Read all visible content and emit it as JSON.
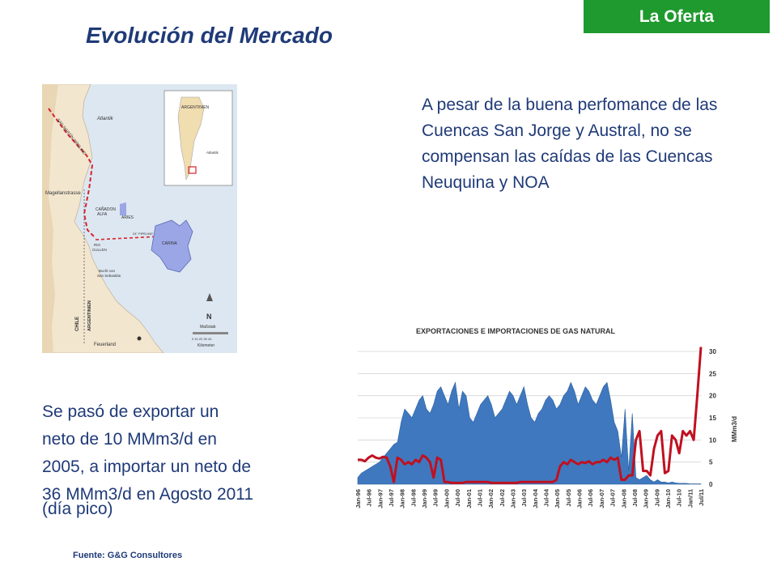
{
  "badge": {
    "label": "La Oferta",
    "color": "#1f9a2e"
  },
  "title": "Evolución del Mercado",
  "text_color": "#1f3a78",
  "paragraph_top": "A pesar de la buena perfomance de las Cuencas San Jorge y  Austral, no se compensan las caídas de las Cuencas Neuquina y NOA",
  "paragraph_bottom": {
    "lines": [
      "Se pasó de exportar un",
      "neto de 10 MMm3/d en",
      "2005, a importar un neto de",
      "36 MMm3/d en Agosto 2011"
    ],
    "last": "(día pico)"
  },
  "source": "Fuente: G&G  Consultores",
  "map": {
    "labels": {
      "sea": "Atlantik",
      "inset_country": "ARGENTINIEN",
      "inset_ocean": "Atlantik",
      "strait": "Magellanstrasse",
      "field1": "CAÑADON",
      "field2": "ALFA",
      "field3": "ARIES",
      "field4": "CARINA",
      "rio1": "RIO",
      "rio2": "CULLEN",
      "bay1": "Bucht von",
      "bay2": "San Sebastián",
      "country1": "CHILE",
      "country2": "ARGENTINIEN",
      "town": "Feuerland",
      "north": "N",
      "scale_title": "Maßstab",
      "scale_unit": "Kilometer",
      "scale_ticks": "0  10  20  30  40",
      "pipeline": "SAN MARTÍN PIPELINE",
      "line_label": "24\" PIPELINE"
    }
  },
  "chart_data": {
    "type": "area",
    "title": "EXPORTACIONES E IMPORTACIONES DE GAS NATURAL",
    "ylabel": "MMm3/d",
    "ylim": [
      0,
      30
    ],
    "yticks": [
      0,
      5,
      10,
      15,
      20,
      25,
      30
    ],
    "y_axis_side": "right",
    "grid": true,
    "x_ticks": [
      "Jan-96",
      "Jul-96",
      "Jan-97",
      "Jul-97",
      "Jan-98",
      "Jul-98",
      "Jan-99",
      "Jul-99",
      "Jan-00",
      "Jul-00",
      "Jan-01",
      "Jul-01",
      "Jan-02",
      "Jul-02",
      "Jan-03",
      "Jul-03",
      "Jan-04",
      "Jul-04",
      "Jan-05",
      "Jul-05",
      "Jan-06",
      "Jul-06",
      "Jan-07",
      "Jul-07",
      "Jan-08",
      "Jul-08",
      "Jan-09",
      "Jul-09",
      "Jan-10",
      "Jul-10",
      "Jan/11",
      "Jul/11"
    ],
    "series": [
      {
        "kind": "area",
        "color": "#3f78be",
        "values": [
          1.5,
          2.5,
          3,
          3.5,
          4,
          4.5,
          5,
          6,
          7,
          8,
          9,
          9.5,
          14,
          17,
          16,
          15,
          17,
          19,
          20,
          17,
          16,
          18,
          21,
          22,
          20,
          18,
          21,
          23,
          17,
          21,
          20,
          15,
          14,
          16,
          18,
          19,
          20,
          18,
          15,
          16,
          17,
          19,
          21,
          20,
          18,
          20,
          22,
          18,
          15,
          14,
          16,
          17,
          19,
          20,
          19,
          17,
          18,
          20,
          21,
          23,
          21,
          18,
          20,
          22,
          21,
          19,
          18,
          20,
          22,
          23,
          19,
          14,
          12,
          6,
          17,
          3,
          16,
          1.5,
          1,
          1.5,
          2,
          1,
          0.5,
          1,
          0.5,
          0.5,
          0.3,
          0.5,
          0.3,
          0.2,
          0.2,
          0.2,
          0.1,
          0.1,
          0.1,
          0.1
        ]
      },
      {
        "kind": "line",
        "color": "#c01020",
        "values": [
          5.5,
          5.5,
          5.2,
          6,
          6.5,
          6,
          5.8,
          6.2,
          6,
          4,
          0.5,
          6,
          5.5,
          4.5,
          5,
          4.5,
          5.5,
          5,
          6.5,
          6,
          5,
          1.5,
          6,
          5.5,
          0.5,
          0.5,
          0.3,
          0.3,
          0.3,
          0.3,
          0.5,
          0.5,
          0.5,
          0.5,
          0.5,
          0.5,
          0.5,
          0.3,
          0.3,
          0.3,
          0.3,
          0.3,
          0.3,
          0.3,
          0.3,
          0.5,
          0.5,
          0.5,
          0.5,
          0.5,
          0.5,
          0.5,
          0.5,
          0.5,
          0.5,
          1,
          4,
          5,
          4.5,
          5.5,
          5,
          4.5,
          5,
          4.8,
          5.2,
          4.5,
          5,
          5,
          5.5,
          5,
          6,
          5.5,
          6,
          1,
          1,
          2,
          2,
          10,
          12,
          3,
          3,
          2,
          8,
          11,
          12,
          2.5,
          3,
          11,
          10,
          7,
          12,
          11,
          12,
          10,
          20,
          31
        ]
      }
    ]
  }
}
